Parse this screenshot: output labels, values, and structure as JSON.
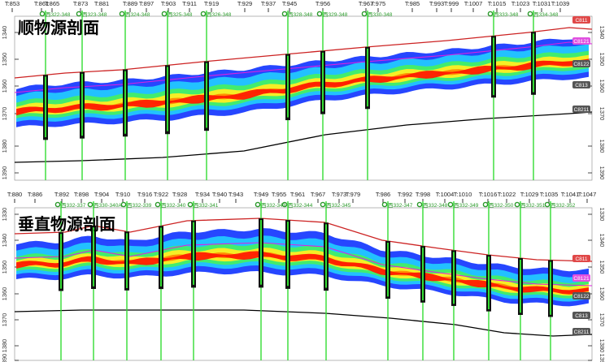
{
  "top_section": {
    "title": "顺物源剖面",
    "traces": [
      "T:853",
      "T:861",
      "T:865",
      "T:873",
      "T:881",
      "T:889",
      "T:897",
      "T:903",
      "T:911",
      "T:919",
      "T:929",
      "T:937",
      "T:945",
      "T:956",
      "T:967",
      "T:975",
      "T:985",
      "T:993",
      "T:999",
      "T:1007",
      "T:1015",
      "T:1023",
      "T:1031",
      "T:1039"
    ],
    "wells": [
      "西322-348",
      "西323-348",
      "西324-348",
      "西325-348",
      "西326-348",
      "西328-348",
      "西329-348",
      "西330-348",
      "西333-348",
      "西334-348"
    ],
    "depth_ticks": [
      "1340",
      "1350",
      "1360",
      "1370",
      "1380",
      "1390"
    ],
    "layers": [
      "C811",
      "C8121",
      "C8122",
      "C813",
      "C8211"
    ]
  },
  "bottom_section": {
    "title": "垂直物源剖面",
    "traces": [
      "T:880",
      "T:886",
      "T:892",
      "T:898",
      "T:904",
      "T:910",
      "T:916",
      "T:922",
      "T:928",
      "T:934",
      "T:940",
      "T:943",
      "T:949",
      "T:955",
      "T:961",
      "T:967",
      "T:973",
      "T:979",
      "T:986",
      "T:992",
      "T:998",
      "T:1004",
      "T:1010",
      "T:1016",
      "T:1022",
      "T:1029",
      "T:1035",
      "T:1041",
      "T:1047"
    ],
    "wells": [
      "西332-337",
      "西330-340A",
      "西332-339",
      "西332-340",
      "西332-341",
      "西332-343",
      "西332-344",
      "西332-345",
      "西332-347",
      "西332-348",
      "西332-349",
      "西332-350",
      "西332-351",
      "西332-352"
    ],
    "depth_ticks": [
      "1330",
      "1340",
      "1350",
      "1360",
      "1370",
      "1380",
      "1390"
    ],
    "layers": [
      "C811",
      "C8121",
      "C8122",
      "C813",
      "C8211"
    ]
  },
  "colors": {
    "well": "#33dd33",
    "top_horizon": "#cc2222",
    "mid_horizon": "#dd22dd",
    "base": "#000000",
    "sand_core": "#ff1a00"
  }
}
